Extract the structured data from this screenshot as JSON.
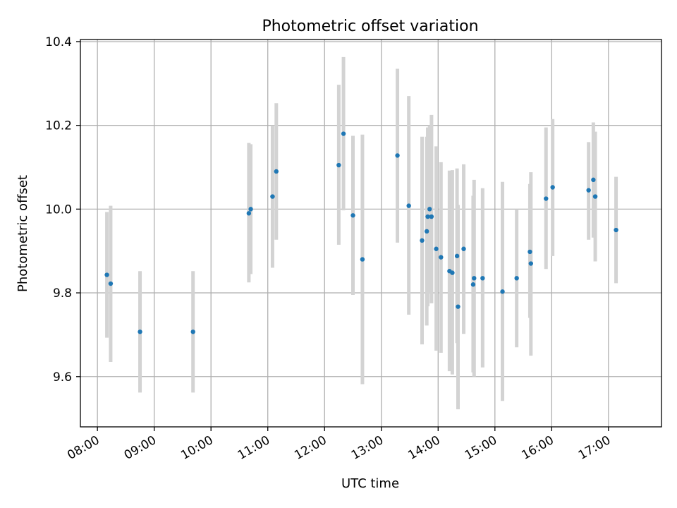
{
  "chart_data": {
    "type": "scatter",
    "title": "Photometric offset variation",
    "xlabel": "UTC time",
    "ylabel": "Photometric offset",
    "xlim": [
      "07:42",
      "17:56"
    ],
    "ylim": [
      9.48,
      10.405
    ],
    "x_ticks": [
      "08:00",
      "09:00",
      "10:00",
      "11:00",
      "12:00",
      "13:00",
      "14:00",
      "15:00",
      "16:00",
      "17:00"
    ],
    "y_ticks": [
      9.6,
      9.8,
      10.0,
      10.2,
      10.4
    ],
    "grid": true,
    "colors": {
      "point": "#1f77b4",
      "errorbar": "#d3d3d3"
    },
    "points": [
      {
        "time": "08:10",
        "y": 9.843,
        "ylow": 9.693,
        "yhigh": 9.993
      },
      {
        "time": "08:14",
        "y": 9.822,
        "ylow": 9.635,
        "yhigh": 10.008
      },
      {
        "time": "08:45",
        "y": 9.707,
        "ylow": 9.562,
        "yhigh": 9.852
      },
      {
        "time": "09:41",
        "y": 9.707,
        "ylow": 9.562,
        "yhigh": 9.852
      },
      {
        "time": "10:40",
        "y": 9.99,
        "ylow": 9.825,
        "yhigh": 10.158
      },
      {
        "time": "10:42",
        "y": 10.0,
        "ylow": 9.845,
        "yhigh": 10.155
      },
      {
        "time": "11:05",
        "y": 10.03,
        "ylow": 9.86,
        "yhigh": 10.2
      },
      {
        "time": "11:09",
        "y": 10.09,
        "ylow": 9.927,
        "yhigh": 10.253
      },
      {
        "time": "12:15",
        "y": 10.105,
        "ylow": 9.915,
        "yhigh": 10.297
      },
      {
        "time": "12:20",
        "y": 10.18,
        "ylow": 9.997,
        "yhigh": 10.363
      },
      {
        "time": "12:30",
        "y": 9.985,
        "ylow": 9.795,
        "yhigh": 10.175
      },
      {
        "time": "12:40",
        "y": 9.88,
        "ylow": 9.582,
        "yhigh": 10.178
      },
      {
        "time": "13:17",
        "y": 10.128,
        "ylow": 9.92,
        "yhigh": 10.335
      },
      {
        "time": "13:29",
        "y": 10.008,
        "ylow": 9.748,
        "yhigh": 10.27
      },
      {
        "time": "13:43",
        "y": 9.925,
        "ylow": 9.677,
        "yhigh": 10.173
      },
      {
        "time": "13:48",
        "y": 9.947,
        "ylow": 9.722,
        "yhigh": 10.173
      },
      {
        "time": "13:49",
        "y": 9.982,
        "ylow": 9.768,
        "yhigh": 10.195
      },
      {
        "time": "13:51",
        "y": 10.0,
        "ylow": 9.8,
        "yhigh": 10.2
      },
      {
        "time": "13:53",
        "y": 9.982,
        "ylow": 9.775,
        "yhigh": 10.225
      },
      {
        "time": "13:58",
        "y": 9.905,
        "ylow": 9.662,
        "yhigh": 10.15
      },
      {
        "time": "14:03",
        "y": 9.885,
        "ylow": 9.657,
        "yhigh": 10.112
      },
      {
        "time": "14:12",
        "y": 9.852,
        "ylow": 9.613,
        "yhigh": 10.092
      },
      {
        "time": "14:15",
        "y": 9.848,
        "ylow": 9.605,
        "yhigh": 10.093
      },
      {
        "time": "14:20",
        "y": 9.888,
        "ylow": 9.68,
        "yhigh": 10.097
      },
      {
        "time": "14:21",
        "y": 9.767,
        "ylow": 9.522,
        "yhigh": 10.01
      },
      {
        "time": "14:27",
        "y": 9.905,
        "ylow": 9.702,
        "yhigh": 10.107
      },
      {
        "time": "14:37",
        "y": 9.82,
        "ylow": 9.61,
        "yhigh": 10.032
      },
      {
        "time": "14:38",
        "y": 9.835,
        "ylow": 9.6,
        "yhigh": 10.07
      },
      {
        "time": "14:47",
        "y": 9.835,
        "ylow": 9.622,
        "yhigh": 10.05
      },
      {
        "time": "15:08",
        "y": 9.803,
        "ylow": 9.542,
        "yhigh": 10.065
      },
      {
        "time": "15:23",
        "y": 9.835,
        "ylow": 9.67,
        "yhigh": 10.0
      },
      {
        "time": "15:37",
        "y": 9.898,
        "ylow": 9.74,
        "yhigh": 10.06
      },
      {
        "time": "15:38",
        "y": 9.87,
        "ylow": 9.65,
        "yhigh": 10.088
      },
      {
        "time": "15:54",
        "y": 10.025,
        "ylow": 9.857,
        "yhigh": 10.195
      },
      {
        "time": "16:01",
        "y": 10.052,
        "ylow": 9.888,
        "yhigh": 10.215
      },
      {
        "time": "16:39",
        "y": 10.045,
        "ylow": 9.927,
        "yhigh": 10.16
      },
      {
        "time": "16:44",
        "y": 10.07,
        "ylow": 9.932,
        "yhigh": 10.207
      },
      {
        "time": "16:46",
        "y": 10.03,
        "ylow": 9.875,
        "yhigh": 10.185
      },
      {
        "time": "17:08",
        "y": 9.95,
        "ylow": 9.823,
        "yhigh": 10.077
      }
    ]
  }
}
